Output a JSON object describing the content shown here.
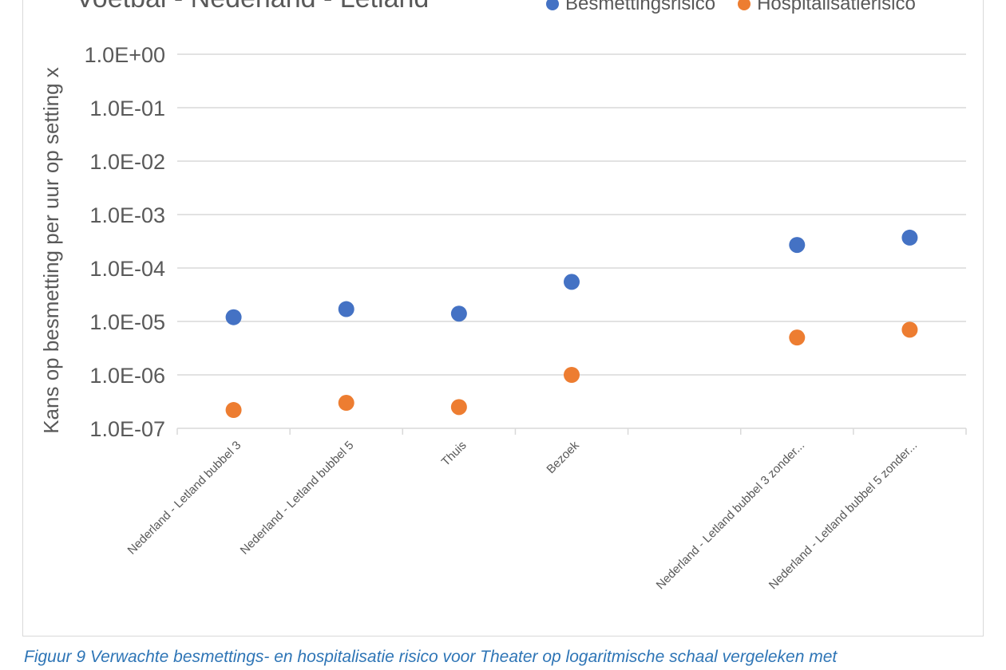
{
  "caption": "Figuur 9 Verwachte besmettings- en hospitalisatie risico voor Theater op logaritmische schaal vergeleken met",
  "colors": {
    "series_1": "#4472c4",
    "series_2": "#ed7d31",
    "grid": "#d9d9d9",
    "text": "#595959"
  },
  "chart_data": {
    "type": "scatter",
    "title": "Voetbal - Nederland - Letland",
    "xlabel": "",
    "ylabel": "Kans op besmetting per uur op setting x",
    "yscale": "log",
    "ylim": [
      1e-07,
      1
    ],
    "yticks": [
      1,
      0.1,
      0.01,
      0.001,
      0.0001,
      1e-05,
      1e-06,
      1e-07
    ],
    "ytick_labels": [
      "1.0E+00",
      "1.0E-01",
      "1.0E-02",
      "1.0E-03",
      "1.0E-04",
      "1.0E-05",
      "1.0E-06",
      "1.0E-07"
    ],
    "categories": [
      "Nederland - Letland bubbel 3",
      "Nederland - Letland bubbel 5",
      "Thuis",
      "Bezoek",
      "",
      "Nederland - Letland bubbel 3 zonder...",
      "Nederland - Letland bubbel 5 zonder..."
    ],
    "series": [
      {
        "name": "Besmettingsrisico",
        "values": [
          1.2e-05,
          1.7e-05,
          1.4e-05,
          5.5e-05,
          null,
          0.00027,
          0.00037
        ]
      },
      {
        "name": "Hospitalisatierisico",
        "values": [
          2.2e-07,
          3e-07,
          2.5e-07,
          1e-06,
          null,
          5e-06,
          7e-06
        ]
      }
    ],
    "grid": true,
    "legend": "top-right"
  }
}
